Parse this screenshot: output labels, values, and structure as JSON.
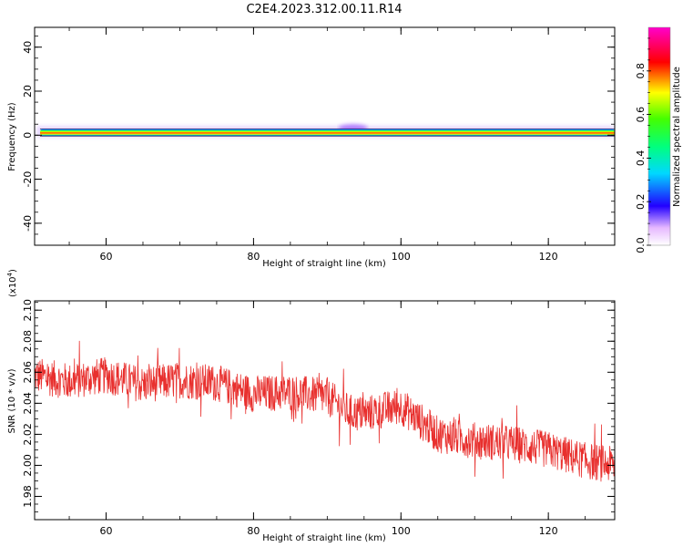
{
  "title": "C2E4.2023.312.00.11.R14",
  "colors": {
    "snr_line": "#e8302e",
    "axis": "#000000"
  },
  "chart_data": [
    {
      "type": "heatmap",
      "xlabel": "Height of straight line (km)",
      "ylabel": "Frequency (Hz)",
      "xlim": [
        50.3,
        129.0
      ],
      "ylim": [
        -50,
        49
      ],
      "xticks": [
        "60",
        "80",
        "100",
        "120"
      ],
      "yticks": [
        "-40",
        "-20",
        "0",
        "20",
        "40"
      ],
      "band_center_hz": 1.2,
      "band_halfwidth_hz": 1.6,
      "halo_extent_hz": [
        -1.0,
        4.2
      ],
      "peak_feature_km": 93.5,
      "colorbar": {
        "label": "Normalized spectral amplitude",
        "range": [
          0.0,
          1.0
        ],
        "ticks": [
          "0.0",
          "0.2",
          "0.4",
          "0.6",
          "0.8"
        ],
        "colormap": "rainbow-magenta"
      }
    },
    {
      "type": "line",
      "xlabel": "Height of straight line (km)",
      "ylabel": "SNR (10 * v/v)",
      "y_multiplier": "(x10",
      "y_multiplier_exp": "4",
      "y_multiplier_close": ")",
      "xlim": [
        50.3,
        129.0
      ],
      "ylim": [
        1.965,
        2.106
      ],
      "xticks": [
        "60",
        "80",
        "100",
        "120"
      ],
      "yticks": [
        "1.98",
        "2.00",
        "2.02",
        "2.04",
        "2.06",
        "2.08",
        "2.10"
      ],
      "series": [
        {
          "trend_x": [
            50.3,
            55,
            60,
            65,
            70,
            75,
            80,
            85,
            90,
            93,
            95,
            100,
            105,
            110,
            115,
            120,
            125,
            129
          ],
          "trend_y": [
            2.058,
            2.054,
            2.058,
            2.052,
            2.055,
            2.053,
            2.046,
            2.047,
            2.044,
            2.034,
            2.033,
            2.038,
            2.02,
            2.016,
            2.014,
            2.01,
            2.003,
            2.0
          ],
          "noise_amplitude": 0.012,
          "sample_count": 1400
        }
      ]
    }
  ]
}
